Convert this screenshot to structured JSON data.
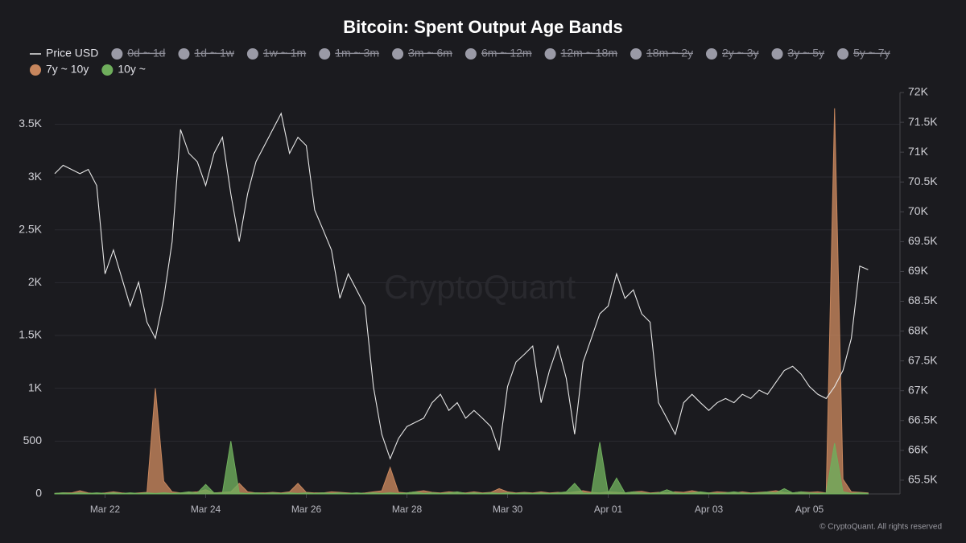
{
  "chart_data": {
    "type": "line",
    "title": "Bitcoin: Spent Output Age Bands",
    "watermark": "CryptoQuant",
    "copyright": "© CryptoQuant. All rights reserved",
    "categories": [
      null,
      null,
      null,
      null,
      null,
      null,
      "Mar 22",
      null,
      null,
      null,
      null,
      null,
      null,
      null,
      null,
      null,
      null,
      null,
      "Mar 24",
      null,
      null,
      null,
      null,
      null,
      null,
      null,
      null,
      null,
      null,
      null,
      "Mar 26",
      null,
      null,
      null,
      null,
      null,
      null,
      null,
      null,
      null,
      null,
      null,
      "Mar 28",
      null,
      null,
      null,
      null,
      null,
      null,
      null,
      null,
      null,
      null,
      null,
      "Mar 30",
      null,
      null,
      null,
      null,
      null,
      null,
      null,
      null,
      null,
      null,
      null,
      "Apr 01",
      null,
      null,
      null,
      null,
      null,
      null,
      null,
      null,
      null,
      null,
      null,
      "Apr 03",
      null,
      null,
      null,
      null,
      null,
      null,
      null,
      null,
      null,
      null,
      null,
      "Apr 05",
      null,
      null,
      null,
      null,
      null,
      null,
      null
    ],
    "ylim": [
      0,
      3800
    ],
    "yticks": [
      0,
      500,
      {
        "value": 1000,
        "label": "1K"
      },
      {
        "value": 1500,
        "label": "1.5K"
      },
      {
        "value": 2000,
        "label": "2K"
      },
      {
        "value": 2500,
        "label": "2.5K"
      },
      {
        "value": 3000,
        "label": "3K"
      },
      {
        "value": 3500,
        "label": "3.5K"
      }
    ],
    "y2lim": [
      65270,
      72000
    ],
    "y2ticks": [
      {
        "value": 65500,
        "label": "65.5K"
      },
      {
        "value": 66000,
        "label": "66K"
      },
      {
        "value": 66500,
        "label": "66.5K"
      },
      {
        "value": 67000,
        "label": "67K"
      },
      {
        "value": 67500,
        "label": "67.5K"
      },
      {
        "value": 68000,
        "label": "68K"
      },
      {
        "value": 68500,
        "label": "68.5K"
      },
      {
        "value": 69000,
        "label": "69K"
      },
      {
        "value": 69500,
        "label": "69.5K"
      },
      {
        "value": 70000,
        "label": "70K"
      },
      {
        "value": 70500,
        "label": "70.5K"
      },
      {
        "value": 71000,
        "label": "71K"
      },
      {
        "value": 71500,
        "label": "71.5K"
      },
      {
        "value": 72000,
        "label": "72K"
      }
    ],
    "grid": true,
    "series": [
      {
        "name": "Price USD",
        "color": "#e6e6e6",
        "type": "line",
        "axis": "y2",
        "values": [
          70640,
          70780,
          70710,
          70640,
          70710,
          70440,
          68960,
          69360,
          68890,
          68420,
          68820,
          68150,
          67880,
          68550,
          69500,
          71380,
          70980,
          70840,
          70440,
          70980,
          71250,
          70300,
          69500,
          70300,
          70840,
          71110,
          71380,
          71650,
          70980,
          71250,
          71110,
          70030,
          69700,
          69360,
          68550,
          68960,
          68690,
          68420,
          67070,
          66270,
          65860,
          66200,
          66400,
          66470,
          66540,
          66800,
          66940,
          66670,
          66800,
          66540,
          66670,
          66540,
          66400,
          66000,
          67070,
          67480,
          67610,
          67750,
          66800,
          67340,
          67750,
          67210,
          66270,
          67480,
          67880,
          68290,
          68420,
          68960,
          68550,
          68690,
          68290,
          68150,
          66800,
          66540,
          66270,
          66800,
          66940,
          66800,
          66670,
          66800,
          66870,
          66800,
          66940,
          66870,
          67010,
          66940,
          67140,
          67340,
          67410,
          67280,
          67070,
          66940,
          66870,
          67070,
          67340,
          67880,
          69090,
          69030
        ]
      },
      {
        "name": "0d ~ 1d",
        "color": "#9a9aa6",
        "hidden": true
      },
      {
        "name": "1d ~ 1w",
        "color": "#9a9aa6",
        "hidden": true
      },
      {
        "name": "1w ~ 1m",
        "color": "#9a9aa6",
        "hidden": true
      },
      {
        "name": "1m ~ 3m",
        "color": "#9a9aa6",
        "hidden": true
      },
      {
        "name": "3m ~ 6m",
        "color": "#9a9aa6",
        "hidden": true
      },
      {
        "name": "6m ~ 12m",
        "color": "#9a9aa6",
        "hidden": true
      },
      {
        "name": "12m ~ 18m",
        "color": "#9a9aa6",
        "hidden": true
      },
      {
        "name": "18m ~ 2y",
        "color": "#9a9aa6",
        "hidden": true
      },
      {
        "name": "2y ~ 3y",
        "color": "#9a9aa6",
        "hidden": true
      },
      {
        "name": "3y ~ 5y",
        "color": "#9a9aa6",
        "hidden": true
      },
      {
        "name": "5y ~ 7y",
        "color": "#9a9aa6",
        "hidden": true
      },
      {
        "name": "7y ~ 10y",
        "color": "#c7865d",
        "type": "area",
        "values": [
          5,
          10,
          10,
          30,
          10,
          5,
          10,
          20,
          10,
          5,
          10,
          15,
          1000,
          120,
          20,
          10,
          15,
          20,
          40,
          10,
          15,
          20,
          100,
          20,
          10,
          10,
          15,
          10,
          20,
          100,
          15,
          10,
          10,
          20,
          15,
          10,
          5,
          10,
          20,
          30,
          250,
          15,
          10,
          20,
          30,
          15,
          10,
          20,
          15,
          10,
          20,
          10,
          15,
          50,
          20,
          10,
          15,
          10,
          20,
          10,
          15,
          10,
          20,
          30,
          15,
          10,
          20,
          15,
          10,
          20,
          25,
          10,
          15,
          10,
          20,
          15,
          30,
          15,
          10,
          20,
          15,
          10,
          20,
          10,
          15,
          20,
          30,
          15,
          10,
          20,
          15,
          20,
          10,
          3650,
          140,
          20,
          15,
          10
        ]
      },
      {
        "name": "10y ~",
        "color": "#6fae5c",
        "type": "area",
        "values": [
          5,
          10,
          5,
          10,
          5,
          10,
          5,
          10,
          5,
          10,
          5,
          10,
          5,
          10,
          5,
          10,
          20,
          10,
          90,
          10,
          10,
          500,
          10,
          5,
          10,
          5,
          10,
          5,
          10,
          5,
          10,
          5,
          10,
          5,
          10,
          5,
          10,
          5,
          10,
          5,
          10,
          5,
          10,
          20,
          5,
          10,
          5,
          10,
          20,
          5,
          10,
          5,
          10,
          5,
          10,
          5,
          10,
          5,
          10,
          5,
          10,
          20,
          100,
          10,
          5,
          490,
          10,
          150,
          10,
          20,
          10,
          5,
          10,
          40,
          10,
          5,
          10,
          20,
          10,
          5,
          10,
          20,
          10,
          5,
          10,
          20,
          10,
          50,
          10,
          20,
          10,
          5,
          10,
          480,
          20,
          5,
          10,
          5
        ]
      }
    ]
  }
}
